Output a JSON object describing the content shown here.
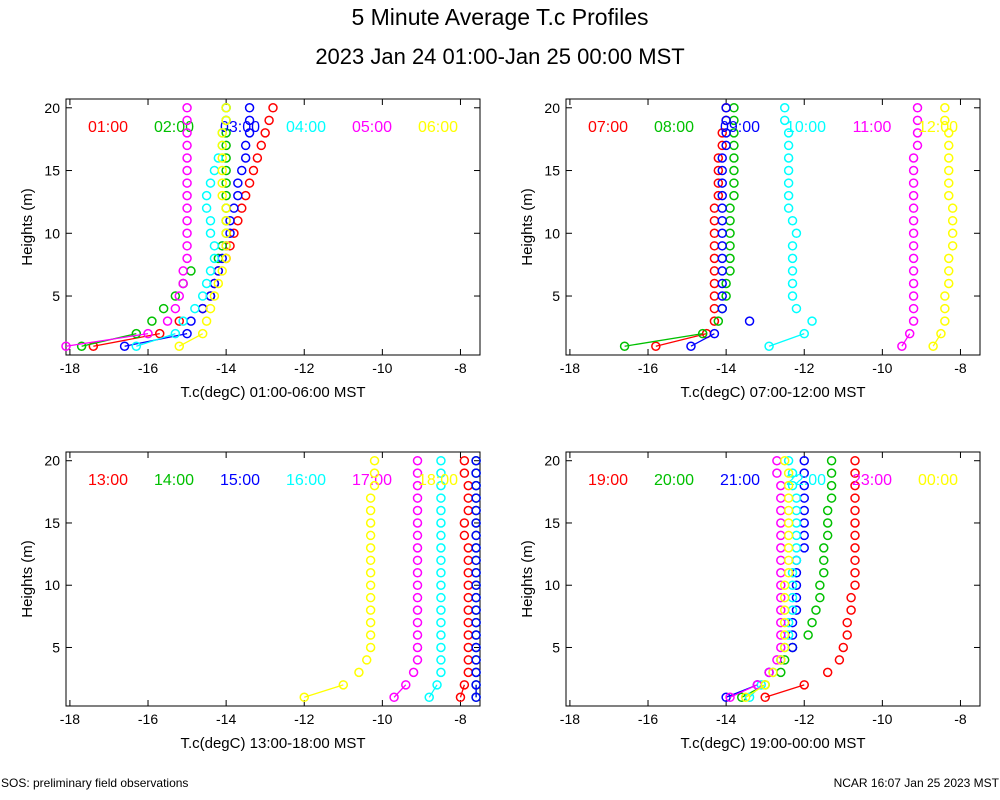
{
  "title": "5 Minute Average T.c Profiles",
  "subtitle": "2023 Jan 24 01:00-Jan 25 00:00 MST",
  "footer": {
    "left": "SOS: preliminary field observations",
    "right": "NCAR 16:07 Jan 25 2023 MST"
  },
  "colors": {
    "red": "#ff0000",
    "green": "#00c000",
    "blue": "#0000ff",
    "cyan": "#00ffff",
    "magenta": "#ff00ff",
    "yellow": "#ffff00"
  },
  "chart_data": [
    {
      "type": "scatter",
      "xlabel": "T.c(degC) 01:00-06:00 MST",
      "ylabel": "Heights (m)",
      "xlim": [
        -18.1,
        -7.5
      ],
      "ylim": [
        0.3,
        20.7
      ],
      "xticks": [
        -18,
        -16,
        -14,
        -12,
        -10,
        -8
      ],
      "yticks": [
        5,
        10,
        15,
        20
      ],
      "heights": [
        1,
        2,
        3,
        4,
        5,
        6,
        7,
        8,
        9,
        10,
        11,
        12,
        13,
        14,
        15,
        16,
        17,
        18,
        19,
        20
      ],
      "series": [
        {
          "name": "01:00",
          "color": "#ff0000",
          "values": [
            -17.4,
            -15.7,
            -15.2,
            -14.6,
            -14.4,
            -14.3,
            -14.2,
            -14.0,
            -13.9,
            -13.8,
            -13.7,
            -13.6,
            -13.5,
            -13.4,
            -13.3,
            -13.2,
            -13.1,
            -13.0,
            -12.9,
            -12.8
          ]
        },
        {
          "name": "02:00",
          "color": "#00c000",
          "values": [
            -17.7,
            -16.3,
            -15.9,
            -15.6,
            -15.3,
            -15.1,
            -14.9,
            -14.2,
            -14.1,
            -14.0,
            -14.0,
            -14.0,
            -14.0,
            -14.0,
            -14.0,
            -14.0,
            -14.0,
            -14.0,
            -14.0,
            -14.0
          ]
        },
        {
          "name": "03:00",
          "color": "#0000ff",
          "values": [
            -16.6,
            -15.0,
            -14.9,
            -14.6,
            -14.4,
            -14.3,
            -14.2,
            -14.1,
            -14.0,
            -13.9,
            -13.9,
            -13.8,
            -13.7,
            -13.7,
            -13.6,
            -13.5,
            -13.5,
            -13.4,
            -13.4,
            -13.4
          ]
        },
        {
          "name": "04:00",
          "color": "#00ffff",
          "values": [
            -16.3,
            -15.3,
            -15.1,
            -14.8,
            -14.6,
            -14.5,
            -14.4,
            -14.3,
            -14.3,
            -14.4,
            -14.4,
            -14.5,
            -14.5,
            -14.4,
            -14.3,
            -14.2,
            -14.1,
            -14.1,
            -14.0,
            -14.0
          ]
        },
        {
          "name": "05:00",
          "color": "#ff00ff",
          "values": [
            -18.1,
            -16.0,
            -15.5,
            -15.3,
            -15.2,
            -15.1,
            -15.1,
            -15.0,
            -15.0,
            -15.0,
            -15.0,
            -15.0,
            -15.0,
            -15.0,
            -15.0,
            -15.0,
            -15.0,
            -15.0,
            -15.0,
            -15.0
          ]
        },
        {
          "name": "06:00",
          "color": "#ffff00",
          "values": [
            -15.2,
            -14.6,
            -14.5,
            -14.4,
            -14.3,
            -14.2,
            -14.1,
            -14.0,
            -14.0,
            -14.0,
            -14.0,
            -14.0,
            -14.1,
            -14.1,
            -14.1,
            -14.1,
            -14.1,
            -14.1,
            -14.0,
            -14.0
          ]
        }
      ]
    },
    {
      "type": "scatter",
      "xlabel": "T.c(degC) 07:00-12:00 MST",
      "ylabel": "Heights (m)",
      "xlim": [
        -18.1,
        -7.5
      ],
      "ylim": [
        0.3,
        20.7
      ],
      "xticks": [
        -18,
        -16,
        -14,
        -12,
        -10,
        -8
      ],
      "yticks": [
        5,
        10,
        15,
        20
      ],
      "heights": [
        1,
        2,
        3,
        4,
        5,
        6,
        7,
        8,
        9,
        10,
        11,
        12,
        13,
        14,
        15,
        16,
        17,
        18,
        19,
        20
      ],
      "series": [
        {
          "name": "07:00",
          "color": "#ff0000",
          "values": [
            -15.8,
            -14.5,
            -14.3,
            -14.3,
            -14.3,
            -14.3,
            -14.3,
            -14.3,
            -14.3,
            -14.3,
            -14.3,
            -14.3,
            -14.2,
            -14.2,
            -14.2,
            -14.2,
            -14.1,
            -14.1,
            -14.0,
            -14.0
          ]
        },
        {
          "name": "08:00",
          "color": "#00c000",
          "values": [
            -16.6,
            -14.6,
            -14.2,
            -14.1,
            -14.0,
            -14.0,
            -13.9,
            -13.9,
            -13.9,
            -13.9,
            -13.9,
            -13.9,
            -13.8,
            -13.8,
            -13.8,
            -13.8,
            -13.8,
            -13.8,
            -13.8,
            -13.8
          ]
        },
        {
          "name": "09:00",
          "color": "#0000ff",
          "values": [
            -14.9,
            -14.3,
            -13.4,
            -14.1,
            -14.1,
            -14.1,
            -14.1,
            -14.1,
            -14.1,
            -14.1,
            -14.1,
            -14.1,
            -14.1,
            -14.1,
            -14.1,
            -14.1,
            -14.0,
            -14.0,
            -14.0,
            -14.0
          ]
        },
        {
          "name": "10:00",
          "color": "#00ffff",
          "values": [
            -12.9,
            -12.0,
            -11.8,
            -12.2,
            -12.3,
            -12.3,
            -12.3,
            -12.3,
            -12.3,
            -12.2,
            -12.3,
            -12.4,
            -12.4,
            -12.4,
            -12.4,
            -12.4,
            -12.4,
            -12.4,
            -12.5,
            -12.5
          ]
        },
        {
          "name": "11:00",
          "color": "#ff00ff",
          "values": [
            -9.5,
            -9.3,
            -9.2,
            -9.2,
            -9.2,
            -9.2,
            -9.2,
            -9.2,
            -9.2,
            -9.2,
            -9.2,
            -9.2,
            -9.2,
            -9.2,
            -9.2,
            -9.2,
            -9.1,
            -9.1,
            -9.1,
            -9.1
          ]
        },
        {
          "name": "12:00",
          "color": "#ffff00",
          "values": [
            -8.7,
            -8.5,
            -8.4,
            -8.4,
            -8.4,
            -8.3,
            -8.3,
            -8.3,
            -8.2,
            -8.2,
            -8.2,
            -8.2,
            -8.3,
            -8.3,
            -8.3,
            -8.3,
            -8.3,
            -8.3,
            -8.4,
            -8.4
          ]
        }
      ]
    },
    {
      "type": "scatter",
      "xlabel": "T.c(degC) 13:00-18:00 MST",
      "ylabel": "Heights (m)",
      "xlim": [
        -18.1,
        -7.5
      ],
      "ylim": [
        0.3,
        20.7
      ],
      "xticks": [
        -18,
        -16,
        -14,
        -12,
        -10,
        -8
      ],
      "yticks": [
        5,
        10,
        15,
        20
      ],
      "heights": [
        1,
        2,
        3,
        4,
        5,
        6,
        7,
        8,
        9,
        10,
        11,
        12,
        13,
        14,
        15,
        16,
        17,
        18,
        19,
        20
      ],
      "series": [
        {
          "name": "13:00",
          "color": "#ff0000",
          "values": [
            -8.0,
            -7.9,
            -7.8,
            -7.8,
            -7.8,
            -7.8,
            -7.8,
            -7.8,
            -7.8,
            -7.8,
            -7.8,
            -7.8,
            -7.8,
            -7.9,
            -7.9,
            -7.8,
            -7.8,
            -7.8,
            -7.9,
            -7.9
          ]
        },
        {
          "name": "14:00",
          "color": "#00c000",
          "values": [
            -7.6,
            -7.6,
            -7.6,
            -7.6,
            -7.6,
            -7.6,
            -7.6,
            -7.6,
            -7.6,
            -7.6,
            -7.6,
            -7.6,
            -7.6,
            -7.6,
            -7.6,
            -7.6,
            -7.6,
            -7.6,
            -7.6,
            -7.6
          ]
        },
        {
          "name": "15:00",
          "color": "#0000ff",
          "values": [
            -7.6,
            -7.6,
            -7.6,
            -7.6,
            -7.6,
            -7.6,
            -7.6,
            -7.6,
            -7.6,
            -7.6,
            -7.6,
            -7.6,
            -7.6,
            -7.6,
            -7.6,
            -7.6,
            -7.6,
            -7.6,
            -7.6,
            -7.6
          ]
        },
        {
          "name": "16:00",
          "color": "#00ffff",
          "values": [
            -8.8,
            -8.6,
            -8.5,
            -8.5,
            -8.5,
            -8.5,
            -8.5,
            -8.5,
            -8.5,
            -8.5,
            -8.5,
            -8.5,
            -8.5,
            -8.5,
            -8.5,
            -8.5,
            -8.5,
            -8.5,
            -8.5,
            -8.5
          ]
        },
        {
          "name": "17:00",
          "color": "#ff00ff",
          "values": [
            -9.7,
            -9.4,
            -9.2,
            -9.1,
            -9.1,
            -9.1,
            -9.1,
            -9.1,
            -9.1,
            -9.1,
            -9.1,
            -9.1,
            -9.1,
            -9.1,
            -9.1,
            -9.1,
            -9.1,
            -9.1,
            -9.1,
            -9.1
          ]
        },
        {
          "name": "18:00",
          "color": "#ffff00",
          "values": [
            -12.0,
            -11.0,
            -10.6,
            -10.4,
            -10.3,
            -10.3,
            -10.3,
            -10.3,
            -10.3,
            -10.3,
            -10.3,
            -10.3,
            -10.3,
            -10.3,
            -10.3,
            -10.3,
            -10.3,
            -10.2,
            -10.2,
            -10.2
          ]
        }
      ]
    },
    {
      "type": "scatter",
      "xlabel": "T.c(degC) 19:00-00:00 MST",
      "ylabel": "Heights (m)",
      "xlim": [
        -18.1,
        -7.5
      ],
      "ylim": [
        0.3,
        20.7
      ],
      "xticks": [
        -18,
        -16,
        -14,
        -12,
        -10,
        -8
      ],
      "yticks": [
        5,
        10,
        15,
        20
      ],
      "heights": [
        1,
        2,
        3,
        4,
        5,
        6,
        7,
        8,
        9,
        10,
        11,
        12,
        13,
        14,
        15,
        16,
        17,
        18,
        19,
        20
      ],
      "series": [
        {
          "name": "19:00",
          "color": "#ff0000",
          "values": [
            -13.0,
            -12.0,
            -11.4,
            -11.1,
            -11.0,
            -10.9,
            -10.9,
            -10.8,
            -10.8,
            -10.7,
            -10.7,
            -10.7,
            -10.7,
            -10.7,
            -10.7,
            -10.7,
            -10.7,
            -10.7,
            -10.7,
            -10.7
          ]
        },
        {
          "name": "20:00",
          "color": "#00c000",
          "values": [
            -13.6,
            -13.0,
            -12.6,
            -12.5,
            -12.3,
            -11.9,
            -11.8,
            -11.7,
            -11.6,
            -11.6,
            -11.5,
            -11.5,
            -11.5,
            -11.4,
            -11.4,
            -11.4,
            -11.3,
            -11.3,
            -11.3,
            -11.3
          ]
        },
        {
          "name": "21:00",
          "color": "#0000ff",
          "values": [
            -14.0,
            -13.2,
            -12.9,
            -12.6,
            -12.3,
            -12.3,
            -12.3,
            -12.2,
            -12.2,
            -12.2,
            -12.2,
            -12.2,
            -12.0,
            -12.0,
            -12.0,
            -12.0,
            -12.0,
            -12.0,
            -12.0,
            -12.0
          ]
        },
        {
          "name": "22:00",
          "color": "#00ffff",
          "values": [
            -13.4,
            -13.1,
            -12.8,
            -12.6,
            -12.5,
            -12.4,
            -12.4,
            -12.3,
            -12.3,
            -12.3,
            -12.3,
            -12.2,
            -12.2,
            -12.2,
            -12.2,
            -12.2,
            -12.2,
            -12.3,
            -12.3,
            -12.4
          ]
        },
        {
          "name": "23:00",
          "color": "#ff00ff",
          "values": [
            -13.9,
            -13.2,
            -12.9,
            -12.7,
            -12.6,
            -12.6,
            -12.6,
            -12.6,
            -12.6,
            -12.6,
            -12.6,
            -12.6,
            -12.6,
            -12.6,
            -12.6,
            -12.6,
            -12.6,
            -12.6,
            -12.7,
            -12.7
          ]
        },
        {
          "name": "00:00",
          "color": "#ffff00",
          "values": [
            -13.5,
            -13.0,
            -12.8,
            -12.6,
            -12.5,
            -12.5,
            -12.5,
            -12.5,
            -12.5,
            -12.5,
            -12.4,
            -12.4,
            -12.4,
            -12.4,
            -12.4,
            -12.4,
            -12.4,
            -12.4,
            -12.4,
            -12.5
          ]
        }
      ]
    }
  ]
}
